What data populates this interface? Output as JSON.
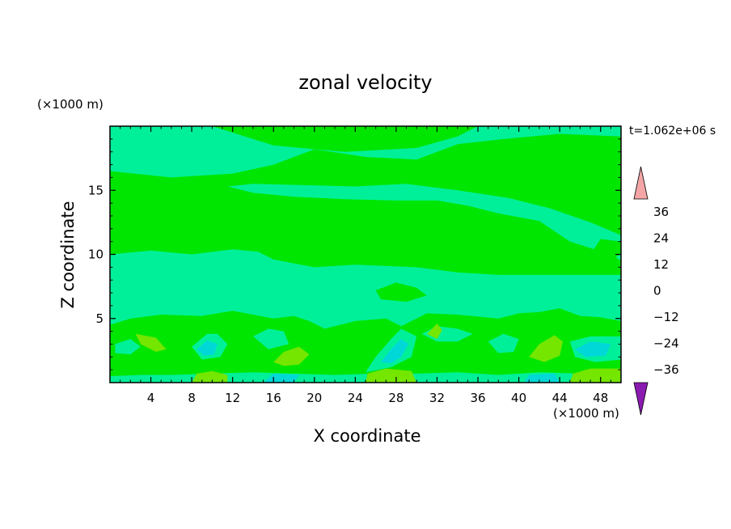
{
  "chart_data": {
    "type": "heatmap",
    "title": "zonal velocity",
    "xlabel": "X coordinate",
    "ylabel": "Z coordinate",
    "x_unit": "(×1000 m)",
    "y_unit": "(×1000 m)",
    "time_label": "t=1.062e+06 s",
    "xlim": [
      0,
      50
    ],
    "ylim": [
      0,
      20
    ],
    "x_ticks": [
      4,
      8,
      12,
      16,
      20,
      24,
      28,
      32,
      36,
      40,
      44,
      48
    ],
    "y_ticks": [
      5,
      10,
      15
    ],
    "colorbar": {
      "levels": [
        -42,
        -36,
        -30,
        -24,
        -18,
        -12,
        -6,
        0,
        6,
        12,
        18,
        24,
        30,
        36,
        42
      ],
      "tick_values": [
        -36,
        -24,
        -12,
        0,
        12,
        24,
        36
      ],
      "tick_labels": [
        "−36",
        "−24",
        "−12",
        "0",
        "12",
        "24",
        "36"
      ],
      "colors": [
        "#5e1aa8",
        "#2a16a0",
        "#1a2ab8",
        "#1a52e6",
        "#1a9af0",
        "#00d8d8",
        "#00f09a",
        "#00e600",
        "#74e600",
        "#c8ee00",
        "#f4e600",
        "#ffa800",
        "#ff6a00",
        "#f01e00"
      ],
      "under_color": "#8a1ab0",
      "over_color": "#f4a6a6"
    },
    "field": {
      "background_value": 2,
      "regions": [
        {
          "value": -3,
          "points": [
            [
              0,
              16.5
            ],
            [
              6,
              16
            ],
            [
              12,
              16.3
            ],
            [
              16,
              17
            ],
            [
              20,
              18.2
            ],
            [
              25,
              17.6
            ],
            [
              30,
              17.4
            ],
            [
              34,
              18.6
            ],
            [
              38.5,
              19
            ],
            [
              44,
              19.4
            ],
            [
              50,
              19.2
            ],
            [
              50,
              20
            ],
            [
              0,
              20
            ]
          ]
        },
        {
          "value": 2,
          "points": [
            [
              10,
              20
            ],
            [
              16,
              18.5
            ],
            [
              23,
              18
            ],
            [
              30,
              18.3
            ],
            [
              34,
              19.2
            ],
            [
              36,
              20
            ]
          ]
        },
        {
          "value": -3,
          "points": [
            [
              0,
              10
            ],
            [
              4,
              10.3
            ],
            [
              8,
              10
            ],
            [
              12,
              10.4
            ],
            [
              14.5,
              10.2
            ],
            [
              16,
              9.6
            ],
            [
              20,
              9
            ],
            [
              24,
              9.2
            ],
            [
              30,
              9
            ],
            [
              34,
              8.6
            ],
            [
              38,
              8.4
            ],
            [
              42,
              8.4
            ],
            [
              46,
              8.4
            ],
            [
              50,
              8.4
            ],
            [
              50,
              0
            ],
            [
              0,
              0
            ]
          ]
        },
        {
          "value": -3,
          "points": [
            [
              11.5,
              15.3
            ],
            [
              14,
              14.8
            ],
            [
              18,
              14.5
            ],
            [
              23,
              14.3
            ],
            [
              28,
              14.2
            ],
            [
              32,
              14.2
            ],
            [
              35,
              13.8
            ],
            [
              38,
              13.2
            ],
            [
              42,
              12.6
            ],
            [
              45,
              11
            ],
            [
              47,
              10.5
            ],
            [
              49,
              10
            ],
            [
              50,
              9.5
            ],
            [
              50,
              11.5
            ],
            [
              47,
              12.5
            ],
            [
              43,
              13.6
            ],
            [
              39,
              14.4
            ],
            [
              34,
              15
            ],
            [
              29,
              15.5
            ],
            [
              24,
              15.3
            ],
            [
              19,
              15.4
            ],
            [
              14,
              15.5
            ]
          ]
        },
        {
          "value": 2,
          "points": [
            [
              0,
              4.5
            ],
            [
              2,
              5
            ],
            [
              5,
              5.3
            ],
            [
              9,
              5.2
            ],
            [
              12,
              5.6
            ],
            [
              14,
              5.3
            ],
            [
              16,
              5
            ],
            [
              18,
              5.2
            ],
            [
              19.5,
              4.8
            ],
            [
              21,
              4.2
            ],
            [
              24,
              4.8
            ],
            [
              27,
              5
            ],
            [
              28.5,
              4.4
            ],
            [
              31,
              5.4
            ],
            [
              34,
              5.3
            ],
            [
              38,
              5
            ],
            [
              40,
              5.4
            ],
            [
              42,
              5.5
            ],
            [
              44,
              5.8
            ],
            [
              46,
              5.2
            ],
            [
              48,
              5.1
            ],
            [
              50,
              4.8
            ],
            [
              50,
              0.8
            ],
            [
              46,
              0.7
            ],
            [
              42,
              0.8
            ],
            [
              38,
              0.6
            ],
            [
              34,
              0.8
            ],
            [
              30,
              0.7
            ],
            [
              26,
              0.7
            ],
            [
              22,
              0.6
            ],
            [
              18,
              0.7
            ],
            [
              14,
              0.8
            ],
            [
              10,
              0.7
            ],
            [
              6,
              0.6
            ],
            [
              3,
              0.6
            ],
            [
              0,
              0.5
            ]
          ]
        },
        {
          "value": 2,
          "points": [
            [
              26,
              7.2
            ],
            [
              28,
              7.8
            ],
            [
              30,
              7.4
            ],
            [
              31,
              6.8
            ],
            [
              29,
              6.3
            ],
            [
              26.5,
              6.5
            ]
          ]
        },
        {
          "value": 2,
          "points": [
            [
              47,
              10
            ],
            [
              49,
              9.6
            ],
            [
              50,
              10
            ],
            [
              50,
              11
            ],
            [
              48,
              11.2
            ]
          ]
        },
        {
          "value": -3,
          "points": [
            [
              0.5,
              3
            ],
            [
              2,
              3.4
            ],
            [
              3,
              2.8
            ],
            [
              2,
              2.2
            ],
            [
              0.5,
              2.3
            ]
          ]
        },
        {
          "value": -3,
          "points": [
            [
              8,
              2.8
            ],
            [
              9.5,
              3.8
            ],
            [
              10.5,
              3.8
            ],
            [
              11.5,
              3
            ],
            [
              10.8,
              2
            ],
            [
              9,
              1.8
            ]
          ]
        },
        {
          "value": -9,
          "points": [
            [
              8.5,
              2.6
            ],
            [
              9.5,
              3.3
            ],
            [
              10.5,
              3
            ],
            [
              10.2,
              2.2
            ],
            [
              9.2,
              2.1
            ]
          ]
        },
        {
          "value": -3,
          "points": [
            [
              14,
              3.6
            ],
            [
              15.5,
              4.2
            ],
            [
              17,
              4
            ],
            [
              17.5,
              3
            ],
            [
              15.5,
              2.6
            ]
          ]
        },
        {
          "value": -3,
          "points": [
            [
              25,
              0.8
            ],
            [
              26,
              2
            ],
            [
              27.5,
              3.4
            ],
            [
              28.5,
              4.2
            ],
            [
              30,
              3.6
            ],
            [
              29.5,
              2
            ],
            [
              27.5,
              1.2
            ]
          ]
        },
        {
          "value": -9,
          "points": [
            [
              26.5,
              1.6
            ],
            [
              27.5,
              2.6
            ],
            [
              28.5,
              3.4
            ],
            [
              29.2,
              3
            ],
            [
              28.5,
              2
            ],
            [
              27.5,
              1.5
            ]
          ]
        },
        {
          "value": -3,
          "points": [
            [
              30.5,
              3.8
            ],
            [
              32,
              4.4
            ],
            [
              34,
              4.2
            ],
            [
              35.5,
              3.8
            ],
            [
              34,
              3.2
            ],
            [
              32,
              3.2
            ]
          ]
        },
        {
          "value": -3,
          "points": [
            [
              37,
              3.2
            ],
            [
              38.5,
              3.8
            ],
            [
              40,
              3.4
            ],
            [
              39.5,
              2.4
            ],
            [
              38,
              2.3
            ]
          ]
        },
        {
          "value": -3,
          "points": [
            [
              45,
              3.2
            ],
            [
              47,
              3.6
            ],
            [
              50,
              3.6
            ],
            [
              50,
              1.8
            ],
            [
              47.5,
              1.6
            ],
            [
              45.5,
              2
            ]
          ]
        },
        {
          "value": -9,
          "points": [
            [
              45.5,
              2.6
            ],
            [
              47,
              3.2
            ],
            [
              49,
              3
            ],
            [
              48.5,
              2.1
            ],
            [
              46.5,
              2
            ]
          ]
        },
        {
          "value": -3,
          "points": [
            [
              0,
              0
            ],
            [
              50,
              0
            ],
            [
              50,
              0.5
            ],
            [
              44,
              0.6
            ],
            [
              40,
              0.4
            ],
            [
              36,
              0.6
            ],
            [
              30,
              0.5
            ],
            [
              24,
              0.4
            ],
            [
              18,
              0.5
            ],
            [
              12,
              0.4
            ],
            [
              6,
              0.5
            ],
            [
              0,
              0.4
            ]
          ]
        },
        {
          "value": -9,
          "points": [
            [
              15,
              0
            ],
            [
              18,
              0
            ],
            [
              18.5,
              0.6
            ],
            [
              16,
              0.7
            ]
          ]
        },
        {
          "value": -9,
          "points": [
            [
              40.5,
              0
            ],
            [
              44,
              0
            ],
            [
              43.5,
              0.7
            ],
            [
              41,
              0.6
            ]
          ]
        },
        {
          "value": 8,
          "points": [
            [
              2.5,
              3.8
            ],
            [
              4.5,
              3.5
            ],
            [
              5.5,
              2.6
            ],
            [
              4.5,
              2.4
            ],
            [
              3,
              3
            ]
          ]
        },
        {
          "value": 8,
          "points": [
            [
              16,
              1.6
            ],
            [
              17,
              2.4
            ],
            [
              18.5,
              2.8
            ],
            [
              19.5,
              2.2
            ],
            [
              18.5,
              1.4
            ],
            [
              17,
              1.3
            ]
          ]
        },
        {
          "value": 8,
          "points": [
            [
              31,
              3.8
            ],
            [
              32,
              4.6
            ],
            [
              32.5,
              4.1
            ],
            [
              32,
              3.4
            ]
          ]
        },
        {
          "value": 8,
          "points": [
            [
              41,
              2
            ],
            [
              42,
              3
            ],
            [
              43.5,
              3.7
            ],
            [
              44.3,
              3.2
            ],
            [
              44,
              2.1
            ],
            [
              42.5,
              1.6
            ]
          ]
        },
        {
          "value": 8,
          "points": [
            [
              8,
              0
            ],
            [
              11.5,
              0
            ],
            [
              11.5,
              0.6
            ],
            [
              10,
              0.9
            ],
            [
              8.5,
              0.7
            ]
          ]
        },
        {
          "value": 8,
          "points": [
            [
              25,
              0
            ],
            [
              30,
              0
            ],
            [
              29.5,
              0.9
            ],
            [
              27,
              1.1
            ],
            [
              25.2,
              0.7
            ]
          ]
        },
        {
          "value": 8,
          "points": [
            [
              45,
              0
            ],
            [
              50,
              0
            ],
            [
              50,
              1.1
            ],
            [
              47,
              1.1
            ],
            [
              45.3,
              0.7
            ]
          ]
        }
      ]
    }
  }
}
